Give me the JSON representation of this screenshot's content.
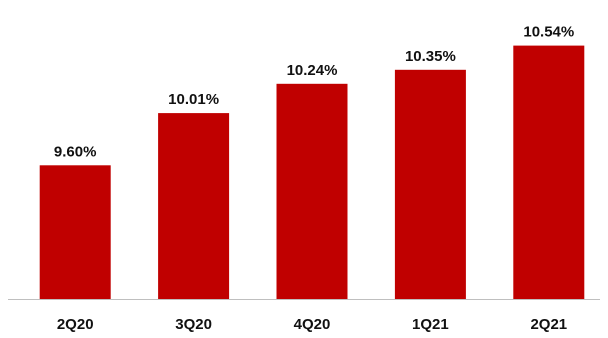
{
  "chart_data": {
    "type": "bar",
    "categories": [
      "2Q20",
      "3Q20",
      "4Q20",
      "1Q21",
      "2Q21"
    ],
    "values": [
      9.6,
      10.01,
      10.24,
      10.35,
      10.54
    ],
    "data_labels": [
      "9.60%",
      "10.01%",
      "10.24%",
      "10.35%",
      "10.54%"
    ],
    "value_unit": "%",
    "title": "",
    "xlabel": "",
    "ylabel": "",
    "ylim": [
      8.55,
      10.6
    ],
    "grid": false,
    "legend": "none",
    "bar_color": "#C00000",
    "axis_color": "#BFBFBF"
  }
}
